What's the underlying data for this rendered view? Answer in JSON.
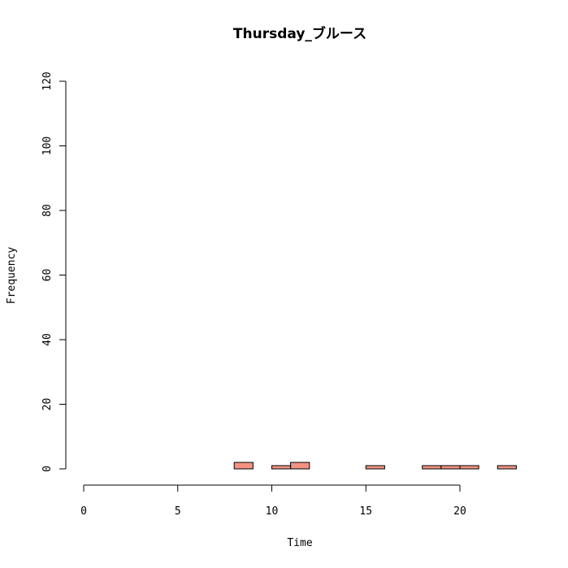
{
  "chart_data": {
    "type": "bar",
    "title": "Thursday_ブルース",
    "xlabel": "Time",
    "ylabel": "Frequency",
    "xlim": [
      0,
      24
    ],
    "ylim": [
      0,
      120
    ],
    "x_ticks": [
      0,
      5,
      10,
      15,
      20
    ],
    "y_ticks": [
      0,
      20,
      40,
      60,
      80,
      100,
      120
    ],
    "bins": [
      {
        "x0": 0,
        "x1": 1,
        "count": 0
      },
      {
        "x0": 1,
        "x1": 2,
        "count": 0
      },
      {
        "x0": 2,
        "x1": 3,
        "count": 0
      },
      {
        "x0": 3,
        "x1": 4,
        "count": 0
      },
      {
        "x0": 4,
        "x1": 5,
        "count": 0
      },
      {
        "x0": 5,
        "x1": 6,
        "count": 0
      },
      {
        "x0": 6,
        "x1": 7,
        "count": 0
      },
      {
        "x0": 7,
        "x1": 8,
        "count": 0
      },
      {
        "x0": 8,
        "x1": 9,
        "count": 2
      },
      {
        "x0": 9,
        "x1": 10,
        "count": 0
      },
      {
        "x0": 10,
        "x1": 11,
        "count": 1
      },
      {
        "x0": 11,
        "x1": 12,
        "count": 2
      },
      {
        "x0": 12,
        "x1": 13,
        "count": 0
      },
      {
        "x0": 13,
        "x1": 14,
        "count": 0
      },
      {
        "x0": 14,
        "x1": 15,
        "count": 0
      },
      {
        "x0": 15,
        "x1": 16,
        "count": 1
      },
      {
        "x0": 16,
        "x1": 17,
        "count": 0
      },
      {
        "x0": 17,
        "x1": 18,
        "count": 0
      },
      {
        "x0": 18,
        "x1": 19,
        "count": 1
      },
      {
        "x0": 19,
        "x1": 20,
        "count": 1
      },
      {
        "x0": 20,
        "x1": 21,
        "count": 1
      },
      {
        "x0": 21,
        "x1": 22,
        "count": 0
      },
      {
        "x0": 22,
        "x1": 23,
        "count": 1
      },
      {
        "x0": 23,
        "x1": 24,
        "count": 0
      }
    ],
    "bar_color": "#f39382",
    "grid": false
  }
}
